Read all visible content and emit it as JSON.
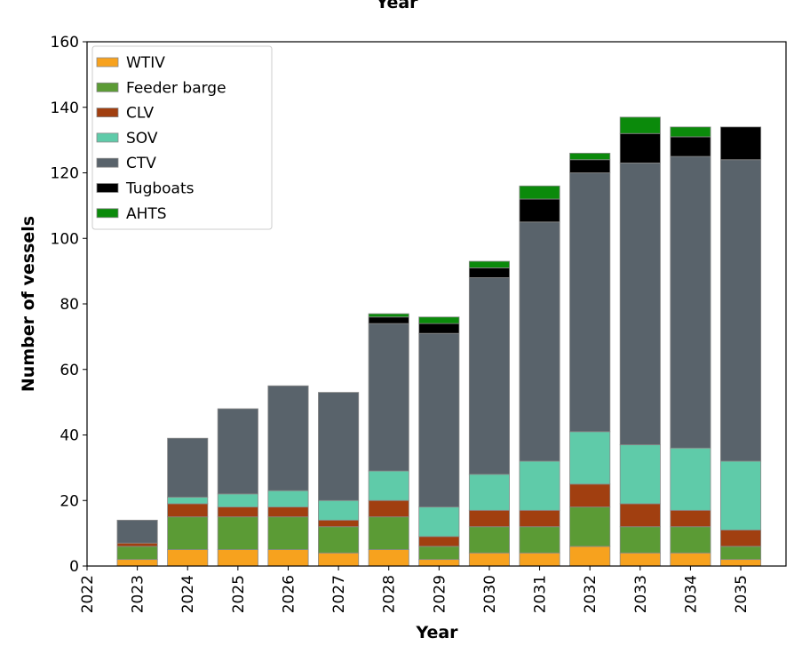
{
  "chart_data": {
    "type": "stacked_bar",
    "title": "Year",
    "x": [
      2023,
      2024,
      2025,
      2026,
      2027,
      2028,
      2029,
      2030,
      2031,
      2032,
      2033,
      2034,
      2035
    ],
    "series": [
      {
        "name": "WTIV",
        "color": "#f7a21e",
        "values": [
          2,
          5,
          5,
          5,
          4,
          5,
          2,
          4,
          4,
          6,
          4,
          4,
          2
        ]
      },
      {
        "name": "Feeder barge",
        "color": "#5b9b35",
        "values": [
          4,
          10,
          10,
          10,
          8,
          10,
          4,
          8,
          8,
          12,
          8,
          8,
          4
        ]
      },
      {
        "name": "CLV",
        "color": "#a13f10",
        "values": [
          1,
          4,
          3,
          3,
          2,
          5,
          3,
          5,
          5,
          7,
          7,
          5,
          5
        ]
      },
      {
        "name": "SOV",
        "color": "#5fcba9",
        "values": [
          0,
          2,
          4,
          5,
          6,
          9,
          9,
          11,
          15,
          16,
          18,
          19,
          21
        ]
      },
      {
        "name": "CTV",
        "color": "#59636b",
        "values": [
          7,
          18,
          26,
          32,
          33,
          45,
          53,
          60,
          73,
          79,
          86,
          89,
          92
        ]
      },
      {
        "name": "Tugboats",
        "color": "#000000",
        "values": [
          0,
          0,
          0,
          0,
          0,
          2,
          3,
          3,
          7,
          4,
          9,
          6,
          10
        ]
      },
      {
        "name": "AHTS",
        "color": "#0b8a0b",
        "values": [
          0,
          0,
          0,
          0,
          0,
          1,
          2,
          2,
          4,
          2,
          5,
          3,
          0
        ]
      }
    ],
    "xlabel": "Year",
    "ylabel": "Number of vessels",
    "xlim": [
      2022,
      2035.9
    ],
    "xticks": [
      2022,
      2023,
      2024,
      2025,
      2026,
      2027,
      2028,
      2029,
      2030,
      2031,
      2032,
      2033,
      2034,
      2035
    ],
    "ylim": [
      0,
      160
    ],
    "yticks": [
      0,
      20,
      40,
      60,
      80,
      100,
      120,
      140,
      160
    ],
    "legend": "upper left"
  }
}
